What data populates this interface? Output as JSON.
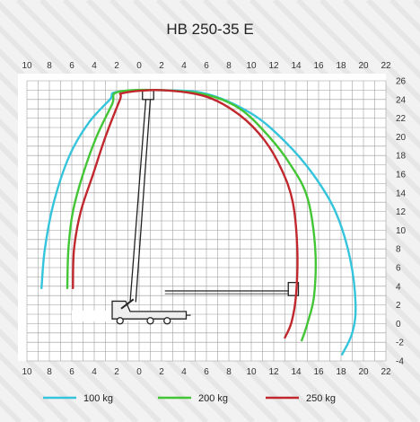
{
  "chart_data": {
    "type": "line",
    "title": "HB 250-35 E",
    "xlabel": "",
    "ylabel": "",
    "x_range": [
      -10,
      22
    ],
    "y_range": [
      -4,
      26
    ],
    "x_ticks_top": [
      "10",
      "8",
      "6",
      "4",
      "2",
      "0",
      "2",
      "4",
      "6",
      "8",
      "10",
      "12",
      "14",
      "16",
      "18",
      "20",
      "22"
    ],
    "x_ticks_bottom": [
      "10",
      "8",
      "6",
      "4",
      "2",
      "0",
      "2",
      "4",
      "6",
      "8",
      "10",
      "12",
      "14",
      "16",
      "18",
      "20",
      "22"
    ],
    "y_ticks": [
      "26",
      "24",
      "22",
      "20",
      "18",
      "16",
      "14",
      "12",
      "10",
      "8",
      "6",
      "4",
      "2",
      "0",
      "-2",
      "-4"
    ],
    "grid": true,
    "legend_position": "bottom",
    "series": [
      {
        "name": "100 kg",
        "color": "#34c4dc",
        "points": [
          [
            -8.7,
            3.8
          ],
          [
            -8.4,
            8
          ],
          [
            -7.6,
            13
          ],
          [
            -6.2,
            18
          ],
          [
            -4.5,
            21.5
          ],
          [
            -2.6,
            24
          ],
          [
            -2,
            24.8
          ],
          [
            2,
            25
          ],
          [
            6,
            24.6
          ],
          [
            10,
            22.5
          ],
          [
            13,
            19.5
          ],
          [
            15.5,
            16
          ],
          [
            17.5,
            12
          ],
          [
            18.8,
            7
          ],
          [
            19.3,
            2
          ],
          [
            19,
            -1
          ],
          [
            18.1,
            -3.3
          ]
        ]
      },
      {
        "name": "200 kg",
        "color": "#43c635",
        "points": [
          [
            -6.4,
            3.8
          ],
          [
            -6.3,
            8
          ],
          [
            -5.9,
            12
          ],
          [
            -5,
            16
          ],
          [
            -3.8,
            20
          ],
          [
            -2.4,
            23.5
          ],
          [
            -1.9,
            24.8
          ],
          [
            2,
            25
          ],
          [
            6,
            24.5
          ],
          [
            9,
            23
          ],
          [
            11.6,
            20
          ],
          [
            13.5,
            17
          ],
          [
            15,
            13.5
          ],
          [
            15.7,
            8
          ],
          [
            15.6,
            3
          ],
          [
            15,
            0
          ],
          [
            14.5,
            -1.8
          ]
        ]
      },
      {
        "name": "250 kg",
        "color": "#c0282e",
        "points": [
          [
            -5.9,
            3.8
          ],
          [
            -5.8,
            8
          ],
          [
            -5.2,
            12
          ],
          [
            -4.1,
            16
          ],
          [
            -3,
            20
          ],
          [
            -1.7,
            24
          ],
          [
            -1.4,
            24.7
          ],
          [
            2,
            25
          ],
          [
            6,
            24.3
          ],
          [
            9,
            22.3
          ],
          [
            11.2,
            19.6
          ],
          [
            12.7,
            16.5
          ],
          [
            13.7,
            13
          ],
          [
            14.1,
            8
          ],
          [
            14,
            3.2
          ],
          [
            13.6,
            0.2
          ],
          [
            13,
            -1.5
          ]
        ]
      }
    ],
    "legend": [
      "100 kg",
      "200 kg",
      "250 kg"
    ]
  }
}
